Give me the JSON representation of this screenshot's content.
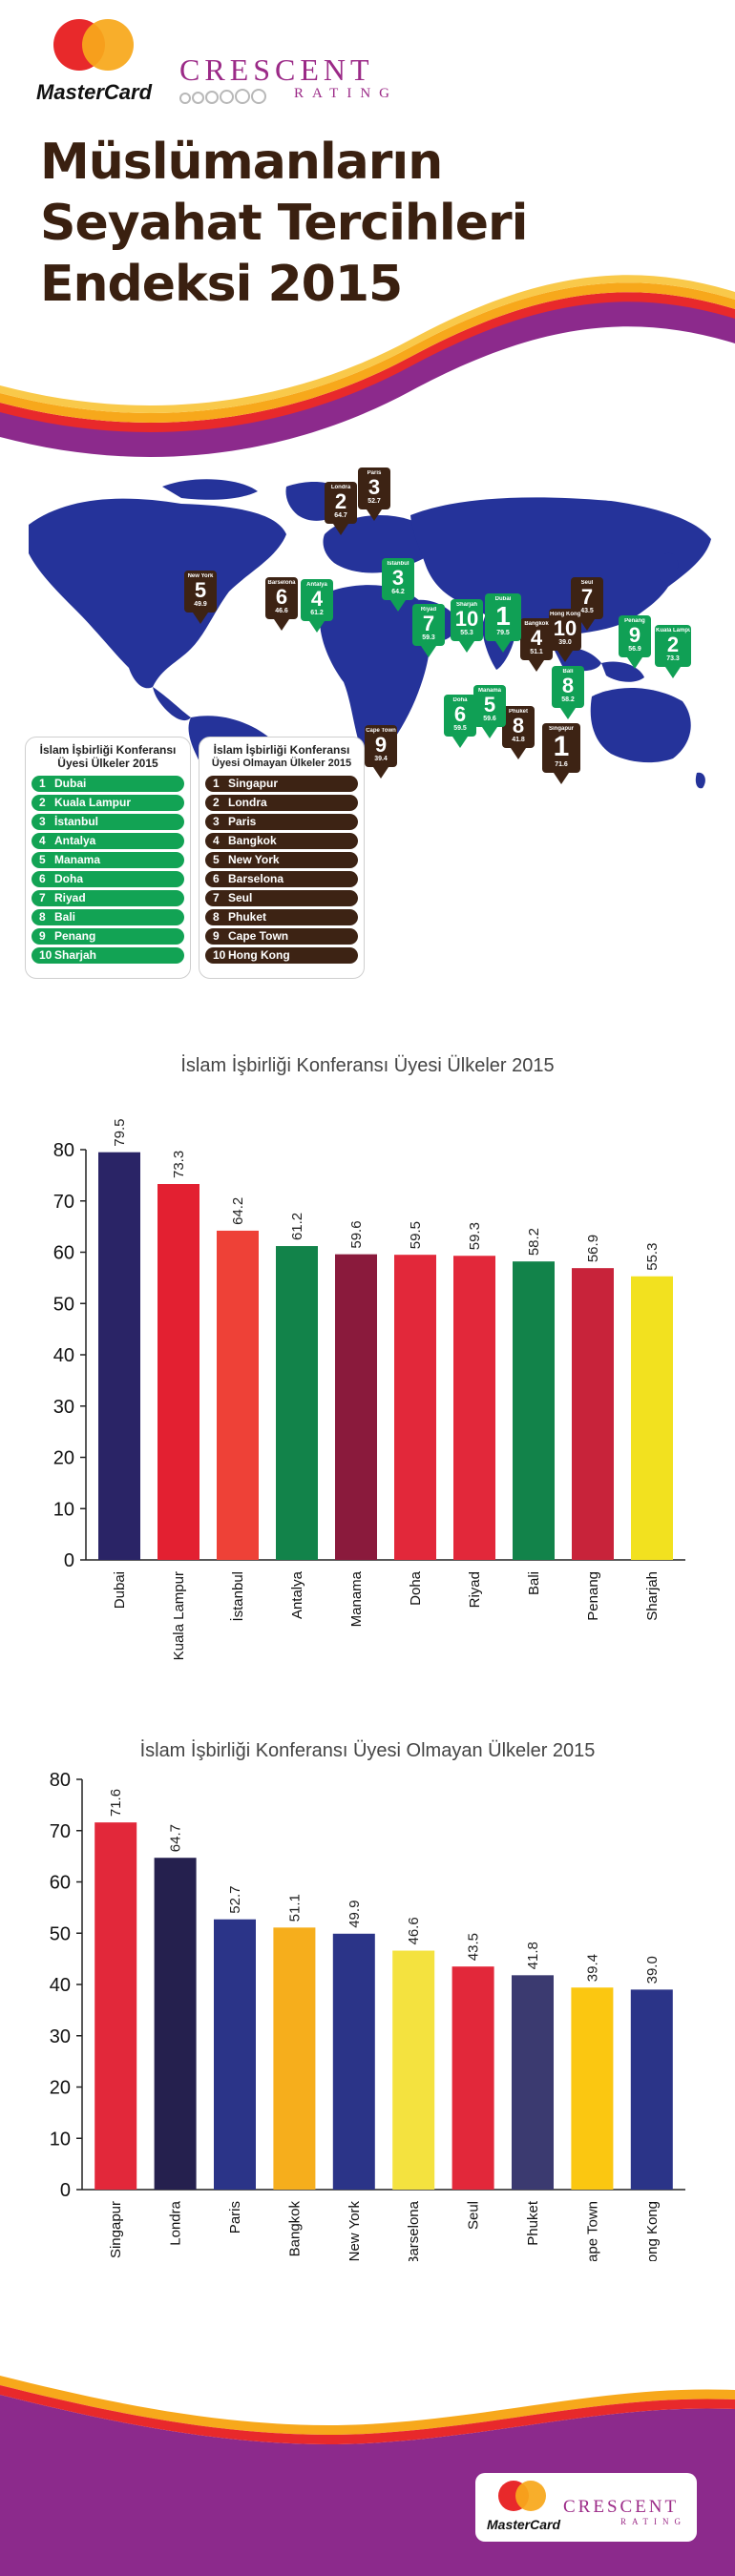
{
  "header": {
    "mastercard_logo_text": "MasterCard",
    "crescent_logo_main": "CRESCENT",
    "crescent_logo_sub": "RATING",
    "title_lines": [
      "Müslümanların",
      "Seyahat Tercihleri",
      "Endeksi 2015"
    ]
  },
  "colors": {
    "title": "#3a2010",
    "map_blue": "#25339a",
    "oic_green": "#12a354",
    "non_oic_brown": "#3d2314",
    "wave_purple": "#8c2a8c",
    "wave_red": "#e8292b",
    "wave_orange": "#f7a81b"
  },
  "map": {
    "oic_legend_title": [
      "İslam İşbirliği Konferansı",
      "Üyesi Ülkeler 2015"
    ],
    "oic": [
      {
        "rank": "1",
        "name": "Dubai",
        "score": "79.5"
      },
      {
        "rank": "2",
        "name": "Kuala Lampur",
        "score": "73.3"
      },
      {
        "rank": "3",
        "name": "İstanbul",
        "score": "64.2"
      },
      {
        "rank": "4",
        "name": "Antalya",
        "score": "61.2"
      },
      {
        "rank": "5",
        "name": "Manama",
        "score": "59.6"
      },
      {
        "rank": "6",
        "name": "Doha",
        "score": "59.5"
      },
      {
        "rank": "7",
        "name": "Riyad",
        "score": "59.3"
      },
      {
        "rank": "8",
        "name": "Bali",
        "score": "58.2"
      },
      {
        "rank": "9",
        "name": "Penang",
        "score": "56.9"
      },
      {
        "rank": "10",
        "name": "Sharjah",
        "score": "55.3"
      }
    ],
    "non_oic_legend_title": [
      "İslam İşbirliği Konferansı",
      "Üyesi Olmayan Ülkeler 2015"
    ],
    "non_oic": [
      {
        "rank": "1",
        "name": "Singapur",
        "score": "71.6"
      },
      {
        "rank": "2",
        "name": "Londra",
        "score": "64.7"
      },
      {
        "rank": "3",
        "name": "Paris",
        "score": "52.7"
      },
      {
        "rank": "4",
        "name": "Bangkok",
        "score": "51.1"
      },
      {
        "rank": "5",
        "name": "New York",
        "score": "49.9"
      },
      {
        "rank": "6",
        "name": "Barselona",
        "score": "46.6"
      },
      {
        "rank": "7",
        "name": "Seul",
        "score": "43.5"
      },
      {
        "rank": "8",
        "name": "Phuket",
        "score": "41.8"
      },
      {
        "rank": "9",
        "name": "Cape Town",
        "score": "39.4"
      },
      {
        "rank": "10",
        "name": "Hong Kong",
        "score": "39.0"
      }
    ]
  },
  "chart_data": [
    {
      "type": "bar",
      "title": "İslam İşbirliği Konferansı Üyesi Ülkeler 2015",
      "categories": [
        "Dubai",
        "Kuala Lampur",
        "İstanbul",
        "Antalya",
        "Manama",
        "Doha",
        "Riyad",
        "Bali",
        "Penang",
        "Sharjah"
      ],
      "values": [
        79.5,
        73.3,
        64.2,
        61.2,
        59.6,
        59.5,
        59.3,
        58.2,
        56.9,
        55.3
      ],
      "value_labels": [
        "79.5",
        "73.3",
        "64.2",
        "61.2",
        "59.6",
        "59.5",
        "59.3",
        "58.2",
        "56.9",
        "55.3"
      ],
      "bar_colors": [
        "#2a2466",
        "#e32031",
        "#ee4137",
        "#12834a",
        "#8a1a3c",
        "#e2283a",
        "#e2283a",
        "#12834a",
        "#c8233a",
        "#f2e11f"
      ],
      "ylim": [
        0,
        80
      ],
      "yticks": [
        0,
        10,
        20,
        30,
        40,
        50,
        60,
        70,
        80
      ],
      "grid": false,
      "legend": "none"
    },
    {
      "type": "bar",
      "title": "İslam İşbirliği Konferansı Üyesi Olmayan Ülkeler 2015",
      "categories": [
        "Singapur",
        "Londra",
        "Paris",
        "Bangkok",
        "New York",
        "Barselona",
        "Seul",
        "Phuket",
        "Cape Town",
        "Hong Kong"
      ],
      "values": [
        71.6,
        64.7,
        52.7,
        51.1,
        49.9,
        46.6,
        43.5,
        41.8,
        39.4,
        39.0
      ],
      "value_labels": [
        "71.6",
        "64.7",
        "52.7",
        "51.1",
        "49.9",
        "46.6",
        "43.5",
        "41.8",
        "39.4",
        "39.0"
      ],
      "bar_colors": [
        "#e2283a",
        "#25204e",
        "#2b3488",
        "#f6ae1c",
        "#2b3488",
        "#f4e23f",
        "#e2283a",
        "#3b3a70",
        "#fbc711",
        "#2b3488"
      ],
      "ylim": [
        0,
        80
      ],
      "yticks": [
        0,
        10,
        20,
        30,
        40,
        50,
        60,
        70,
        80
      ],
      "grid": false,
      "legend": "none"
    }
  ]
}
